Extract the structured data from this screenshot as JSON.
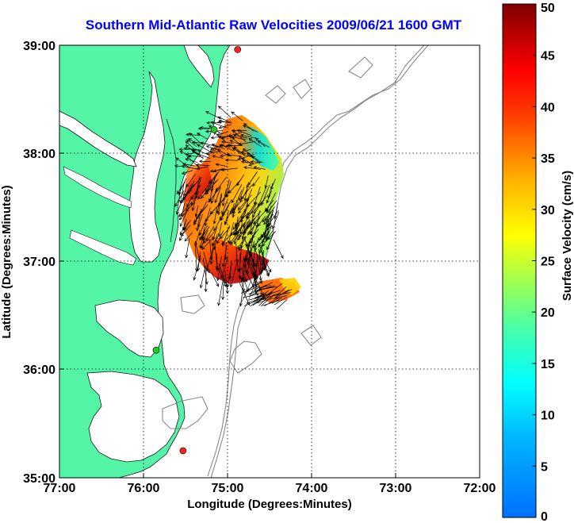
{
  "title": "Southern Mid-Atlantic Raw Velocities 2009/06/21 1600 GMT",
  "x_axis": {
    "label": "Longitude (Degrees:Minutes)",
    "ticks": [
      "77:00",
      "76:00",
      "75:00",
      "74:00",
      "73:00",
      "72:00"
    ]
  },
  "y_axis": {
    "label": "Latitude (Degrees:Minutes)",
    "ticks": [
      "39:00",
      "38:00",
      "37:00",
      "36:00",
      "35:00"
    ]
  },
  "colorbar": {
    "label": "Surface Velocity (cm/s)",
    "ticks": [
      "50",
      "45",
      "40",
      "35",
      "30",
      "25",
      "20",
      "15",
      "10",
      "5",
      "0"
    ],
    "min": 0,
    "max": 50
  },
  "colors": {
    "land": "#55f5a8",
    "title": "#0000ff",
    "bathymetry": "#888888",
    "station_red": "#ff2020",
    "station_green": "#22cc22"
  },
  "map_extent": {
    "lon": [
      -77,
      -72
    ],
    "lat": [
      35,
      39
    ]
  },
  "stations": [
    {
      "lon": -74.88,
      "lat": 38.96,
      "color": "red"
    },
    {
      "lon": -75.85,
      "lat": 36.18,
      "color": "green"
    },
    {
      "lon": -75.53,
      "lat": 35.25,
      "color": "red"
    },
    {
      "lon": -75.16,
      "lat": 38.22,
      "color": "green"
    }
  ]
}
